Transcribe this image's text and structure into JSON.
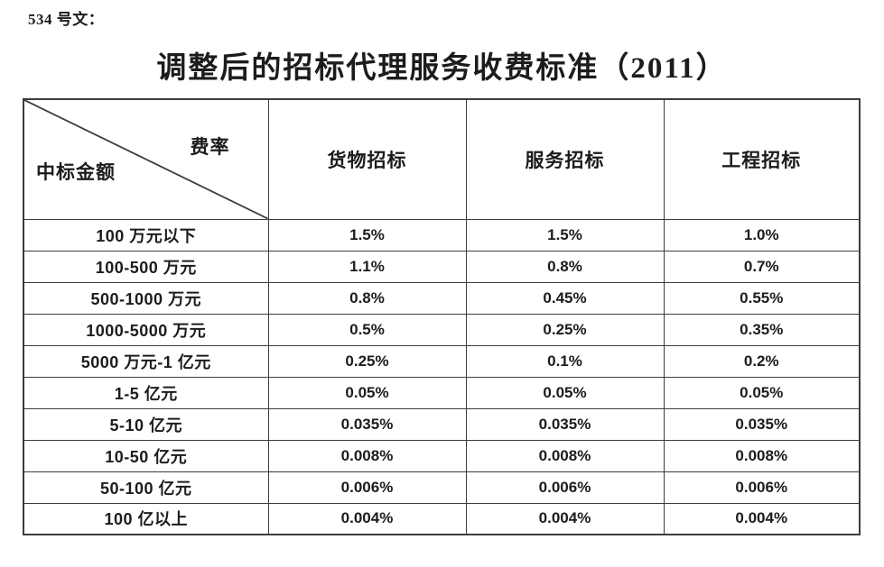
{
  "doc_label": "534 号文：",
  "title": "调整后的招标代理服务收费标准（2011）",
  "colors": {
    "background": "#ffffff",
    "text": "#1c1c1c",
    "border": "#3c3c3c"
  },
  "table": {
    "corner": {
      "top_right": "费率",
      "bottom_left": "中标金额"
    },
    "columns": [
      "货物招标",
      "服务招标",
      "工程招标"
    ],
    "rows": [
      {
        "label": "100 万元以下",
        "values": [
          "1.5%",
          "1.5%",
          "1.0%"
        ]
      },
      {
        "label": "100-500 万元",
        "values": [
          "1.1%",
          "0.8%",
          "0.7%"
        ]
      },
      {
        "label": "500-1000 万元",
        "values": [
          "0.8%",
          "0.45%",
          "0.55%"
        ]
      },
      {
        "label": "1000-5000 万元",
        "values": [
          "0.5%",
          "0.25%",
          "0.35%"
        ]
      },
      {
        "label": "5000 万元-1 亿元",
        "values": [
          "0.25%",
          "0.1%",
          "0.2%"
        ]
      },
      {
        "label": "1-5 亿元",
        "values": [
          "0.05%",
          "0.05%",
          "0.05%"
        ]
      },
      {
        "label": "5-10 亿元",
        "values": [
          "0.035%",
          "0.035%",
          "0.035%"
        ]
      },
      {
        "label": "10-50 亿元",
        "values": [
          "0.008%",
          "0.008%",
          "0.008%"
        ]
      },
      {
        "label": "50-100 亿元",
        "values": [
          "0.006%",
          "0.006%",
          "0.006%"
        ]
      },
      {
        "label": "100 亿以上",
        "values": [
          "0.004%",
          "0.004%",
          "0.004%"
        ]
      }
    ]
  }
}
